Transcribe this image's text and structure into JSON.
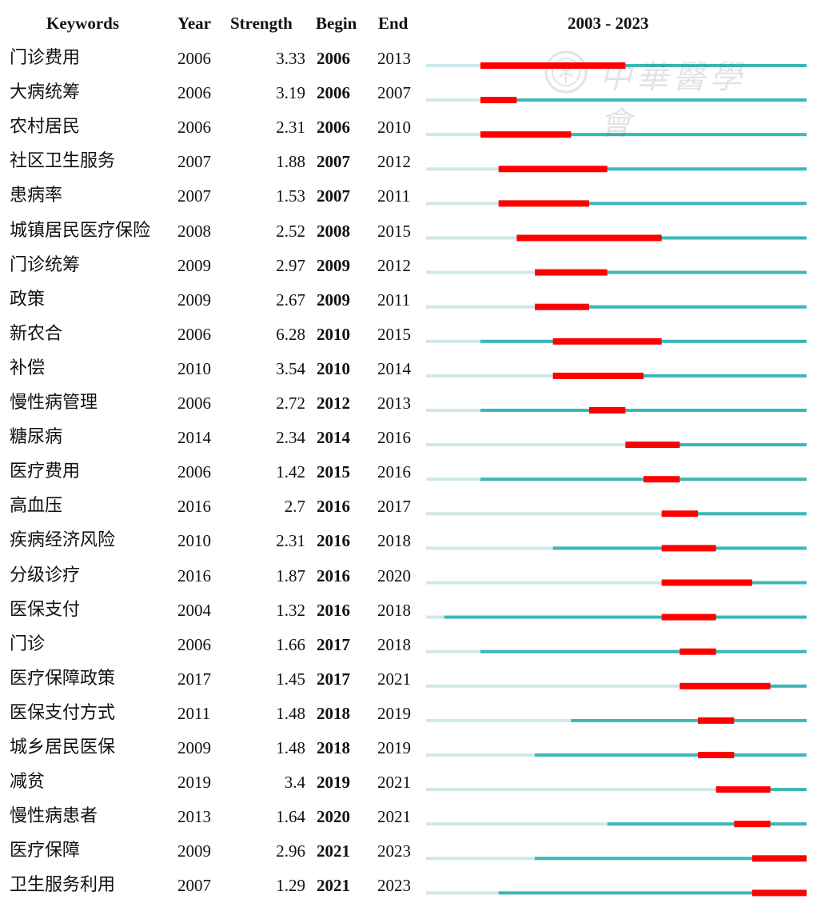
{
  "headers": {
    "keywords": "Keywords",
    "year": "Year",
    "strength": "Strength",
    "begin": "Begin",
    "end": "End",
    "range": "2003 - 2023"
  },
  "watermark": {
    "text": "中華醫學會"
  },
  "colors": {
    "burst": "#ff0000",
    "active": "#3cb7b7",
    "inactive": "#cfe8ea"
  },
  "chart_data": {
    "type": "table",
    "timeline_start": 2003,
    "timeline_end": 2023,
    "rows": [
      {
        "keyword": "门诊费用",
        "year": "2006",
        "strength": "3.33",
        "begin": "2006",
        "end": "2013"
      },
      {
        "keyword": "大病统筹",
        "year": "2006",
        "strength": "3.19",
        "begin": "2006",
        "end": "2007"
      },
      {
        "keyword": "农村居民",
        "year": "2006",
        "strength": "2.31",
        "begin": "2006",
        "end": "2010"
      },
      {
        "keyword": "社区卫生服务",
        "year": "2007",
        "strength": "1.88",
        "begin": "2007",
        "end": "2012"
      },
      {
        "keyword": "患病率",
        "year": "2007",
        "strength": "1.53",
        "begin": "2007",
        "end": "2011"
      },
      {
        "keyword": "城镇居民医疗保险",
        "year": "2008",
        "strength": "2.52",
        "begin": "2008",
        "end": "2015"
      },
      {
        "keyword": "门诊统筹",
        "year": "2009",
        "strength": "2.97",
        "begin": "2009",
        "end": "2012"
      },
      {
        "keyword": "政策",
        "year": "2009",
        "strength": "2.67",
        "begin": "2009",
        "end": "2011"
      },
      {
        "keyword": "新农合",
        "year": "2006",
        "strength": "6.28",
        "begin": "2010",
        "end": "2015"
      },
      {
        "keyword": "补偿",
        "year": "2010",
        "strength": "3.54",
        "begin": "2010",
        "end": "2014"
      },
      {
        "keyword": "慢性病管理",
        "year": "2006",
        "strength": "2.72",
        "begin": "2012",
        "end": "2013"
      },
      {
        "keyword": "糖尿病",
        "year": "2014",
        "strength": "2.34",
        "begin": "2014",
        "end": "2016"
      },
      {
        "keyword": "医疗费用",
        "year": "2006",
        "strength": "1.42",
        "begin": "2015",
        "end": "2016"
      },
      {
        "keyword": "高血压",
        "year": "2016",
        "strength": "2.7",
        "begin": "2016",
        "end": "2017"
      },
      {
        "keyword": "疾病经济风险",
        "year": "2010",
        "strength": "2.31",
        "begin": "2016",
        "end": "2018"
      },
      {
        "keyword": "分级诊疗",
        "year": "2016",
        "strength": "1.87",
        "begin": "2016",
        "end": "2020"
      },
      {
        "keyword": "医保支付",
        "year": "2004",
        "strength": "1.32",
        "begin": "2016",
        "end": "2018"
      },
      {
        "keyword": "门诊",
        "year": "2006",
        "strength": "1.66",
        "begin": "2017",
        "end": "2018"
      },
      {
        "keyword": "医疗保障政策",
        "year": "2017",
        "strength": "1.45",
        "begin": "2017",
        "end": "2021"
      },
      {
        "keyword": "医保支付方式",
        "year": "2011",
        "strength": "1.48",
        "begin": "2018",
        "end": "2019"
      },
      {
        "keyword": "城乡居民医保",
        "year": "2009",
        "strength": "1.48",
        "begin": "2018",
        "end": "2019"
      },
      {
        "keyword": "减贫",
        "year": "2019",
        "strength": "3.4",
        "begin": "2019",
        "end": "2021"
      },
      {
        "keyword": "慢性病患者",
        "year": "2013",
        "strength": "1.64",
        "begin": "2020",
        "end": "2021"
      },
      {
        "keyword": "医疗保障",
        "year": "2009",
        "strength": "2.96",
        "begin": "2021",
        "end": "2023"
      },
      {
        "keyword": "卫生服务利用",
        "year": "2007",
        "strength": "1.29",
        "begin": "2021",
        "end": "2023"
      }
    ]
  }
}
